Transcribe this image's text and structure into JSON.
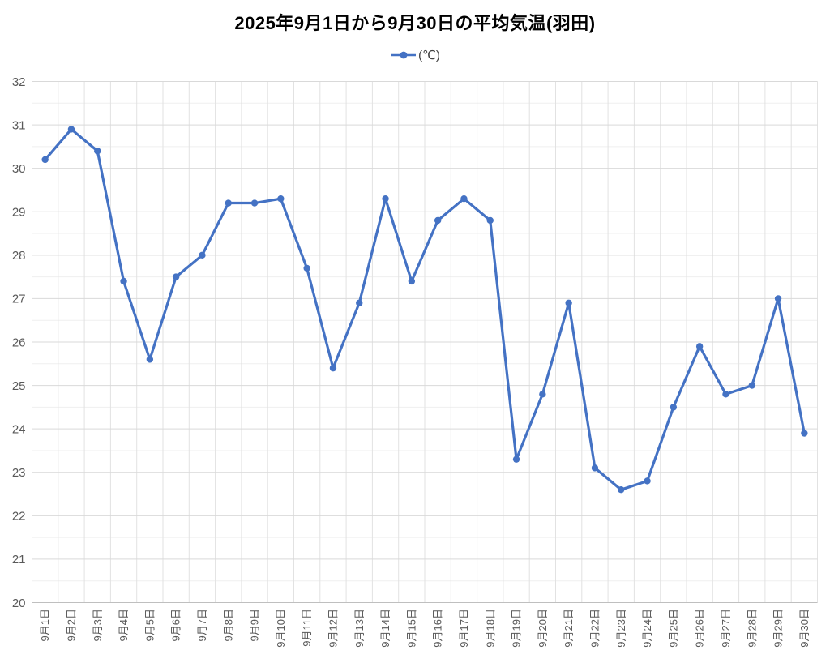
{
  "title": "2025年9月1日から9月30日の平均気温(羽田)",
  "legend": {
    "label": "(℃)"
  },
  "colors": {
    "series": "#4472C4",
    "grid_major": "#d9d9d9",
    "grid_minor": "#efefef",
    "grid_vertical": "#e2e2e2",
    "axis_line": "#bfbfbf",
    "tick_label": "#595959",
    "title_color": "#000000"
  },
  "chart_data": {
    "type": "line",
    "title": "2025年9月1日から9月30日の平均気温(羽田)",
    "xlabel": "",
    "ylabel": "",
    "categories": [
      "9月1日",
      "9月2日",
      "9月3日",
      "9月4日",
      "9月5日",
      "9月6日",
      "9月7日",
      "9月8日",
      "9月9日",
      "9月10日",
      "9月11日",
      "9月12日",
      "9月13日",
      "9月14日",
      "9月15日",
      "9月16日",
      "9月17日",
      "9月18日",
      "9月19日",
      "9月20日",
      "9月21日",
      "9月22日",
      "9月23日",
      "9月24日",
      "9月25日",
      "9月26日",
      "9月27日",
      "9月28日",
      "9月29日",
      "9月30日"
    ],
    "series": [
      {
        "name": "(℃)",
        "values": [
          30.2,
          30.9,
          30.4,
          27.4,
          25.6,
          27.5,
          28.0,
          29.2,
          29.2,
          29.3,
          27.7,
          25.4,
          26.9,
          29.3,
          27.4,
          28.8,
          29.3,
          28.8,
          23.3,
          24.8,
          26.9,
          23.1,
          22.6,
          22.8,
          24.5,
          25.9,
          24.8,
          25.0,
          27.0,
          23.9
        ]
      }
    ],
    "ylim": [
      20,
      32
    ],
    "y_tick_interval": 1,
    "y_minor_interval": 0.5,
    "grid": true,
    "legend_position": "top",
    "marker": "circle"
  }
}
